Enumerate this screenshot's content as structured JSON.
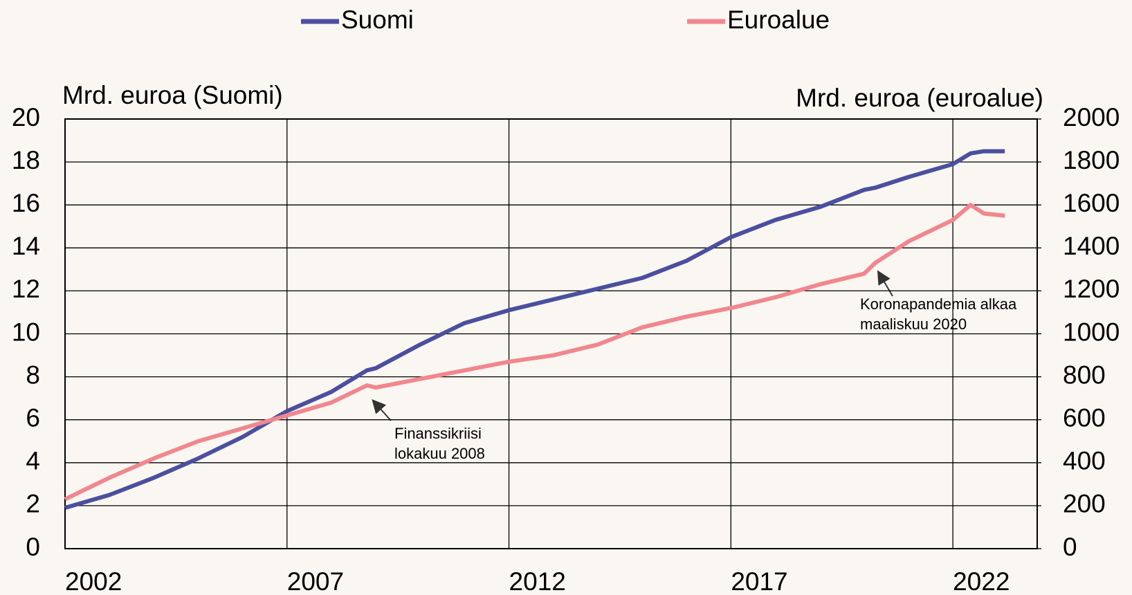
{
  "chart_data": {
    "type": "line",
    "y_label": "Mrd. euroa (Suomi)",
    "y2_label": "Mrd. euroa (euroalue)",
    "x": [
      2002,
      2003,
      2004,
      2005,
      2006,
      2007,
      2008,
      2008.8,
      2009,
      2010,
      2011,
      2012,
      2013,
      2014,
      2015,
      2016,
      2017,
      2018,
      2019,
      2020,
      2020.25,
      2021,
      2022,
      2022.4,
      2022.7,
      2023.17
    ],
    "series": [
      {
        "name": "Suomi",
        "color": "#4b4f9e",
        "values": [
          1.9,
          2.5,
          3.3,
          4.2,
          5.2,
          6.4,
          7.3,
          8.3,
          8.4,
          9.5,
          10.5,
          11.1,
          11.6,
          12.1,
          12.6,
          13.4,
          14.5,
          15.3,
          15.9,
          16.7,
          16.8,
          17.3,
          17.9,
          18.4,
          18.5,
          18.5
        ]
      },
      {
        "name": "Euroalue",
        "color": "#f0878f",
        "axis": "y2",
        "values": [
          230,
          330,
          420,
          500,
          560,
          620,
          680,
          760,
          750,
          790,
          830,
          870,
          900,
          950,
          1030,
          1080,
          1120,
          1170,
          1230,
          1280,
          1330,
          1430,
          1530,
          1600,
          1560,
          1550
        ]
      }
    ],
    "xlim": [
      2002,
      2023.9
    ],
    "xticks": [
      2002,
      2007,
      2012,
      2017,
      2022
    ],
    "ylim": [
      0,
      20
    ],
    "yticks": [
      0,
      2,
      4,
      6,
      8,
      10,
      12,
      14,
      16,
      18,
      20
    ],
    "y2lim": [
      0,
      2000
    ],
    "y2ticks": [
      0,
      200,
      400,
      600,
      800,
      1000,
      1200,
      1400,
      1600,
      1800,
      2000
    ],
    "grid": true,
    "legend": "top",
    "annotations": [
      {
        "lines": [
          "Finanssikriisi",
          "lokakuu 2008"
        ]
      },
      {
        "lines": [
          "Koronapandemia alkaa",
          "maaliskuu 2020"
        ]
      }
    ]
  }
}
